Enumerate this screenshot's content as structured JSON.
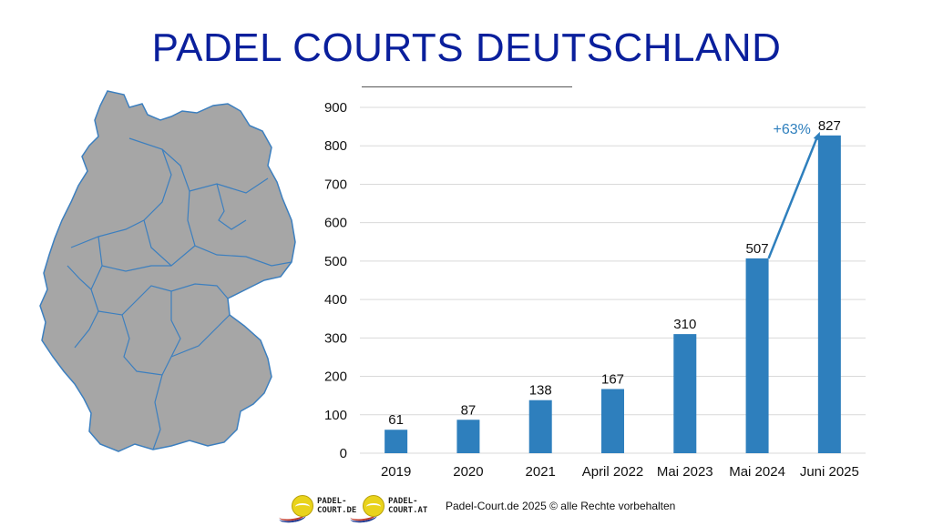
{
  "page": {
    "title": "PADEL COURTS DEUTSCHLAND",
    "footer": {
      "logos": [
        {
          "line1": "PADEL-",
          "line2": "COURT.DE"
        },
        {
          "line1": "PADEL-",
          "line2": "COURT.AT"
        }
      ],
      "copyright": "Padel-Court.de 2025 © alle Rechte vorbehalten"
    }
  },
  "chart_data": {
    "type": "bar",
    "title": "",
    "xlabel": "",
    "ylabel": "",
    "categories": [
      "2019",
      "2020",
      "2021",
      "April 2022",
      "Mai 2023",
      "Mai 2024",
      "Juni 2025"
    ],
    "values": [
      61,
      87,
      138,
      167,
      310,
      507,
      827
    ],
    "ylim": [
      0,
      900
    ],
    "yticks": [
      0,
      100,
      200,
      300,
      400,
      500,
      600,
      700,
      800,
      900
    ],
    "grid": true,
    "bar_color": "#2e7fbd",
    "annotation": {
      "text": "+63%",
      "from": "Mai 2024",
      "to": "Juni 2025",
      "color": "#2e7fbd"
    }
  },
  "map": {
    "fill": "#a6a6a6",
    "border": "#3c7fbf"
  }
}
